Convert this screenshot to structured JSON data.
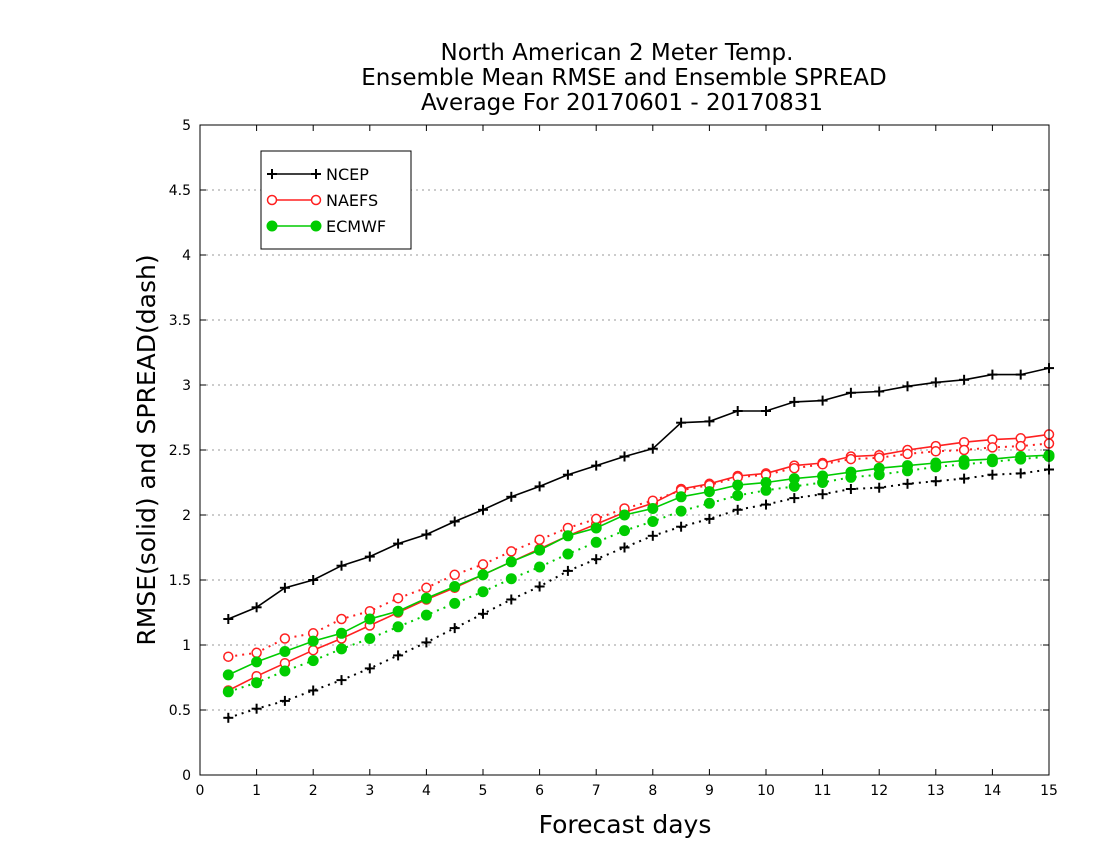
{
  "chart_data": {
    "type": "line",
    "title": [
      "North American 2 Meter Temp.",
      "Ensemble Mean RMSE and Ensemble SPREAD",
      "Average For 20170601 - 20170831"
    ],
    "xlabel": "Forecast days",
    "ylabel": "RMSE(solid) and SPREAD(dash)",
    "xlim": [
      0,
      15
    ],
    "ylim": [
      0,
      5
    ],
    "xticks": [
      "0",
      "1",
      "2",
      "3",
      "4",
      "5",
      "6",
      "7",
      "8",
      "9",
      "10",
      "11",
      "12",
      "13",
      "14",
      "15"
    ],
    "yticks": [
      "0",
      "0.5",
      "1",
      "1.5",
      "2",
      "2.5",
      "3",
      "3.5",
      "4",
      "4.5",
      "5"
    ],
    "grid": "horizontal-dotted",
    "legend_position": "top-left",
    "x": [
      0.5,
      1,
      1.5,
      2,
      2.5,
      3,
      3.5,
      4,
      4.5,
      5,
      5.5,
      6,
      6.5,
      7,
      7.5,
      8,
      8.5,
      9,
      9.5,
      10,
      10.5,
      11,
      11.5,
      12,
      12.5,
      13,
      13.5,
      14,
      14.5,
      15
    ],
    "series": [
      {
        "name": "NCEP",
        "color": "#000000",
        "marker": "plus",
        "rmse": [
          1.2,
          1.29,
          1.44,
          1.5,
          1.61,
          1.68,
          1.78,
          1.85,
          1.95,
          2.04,
          2.14,
          2.22,
          2.31,
          2.38,
          2.45,
          2.51,
          2.71,
          2.72,
          2.8,
          2.8,
          2.87,
          2.88,
          2.94,
          2.95,
          2.99,
          3.02,
          3.04,
          3.08,
          3.08,
          3.13
        ],
        "spread": [
          0.44,
          0.51,
          0.57,
          0.65,
          0.73,
          0.82,
          0.92,
          1.02,
          1.13,
          1.24,
          1.35,
          1.45,
          1.57,
          1.66,
          1.75,
          1.84,
          1.91,
          1.97,
          2.04,
          2.08,
          2.13,
          2.16,
          2.2,
          2.21,
          2.24,
          2.26,
          2.28,
          2.31,
          2.32,
          2.35
        ]
      },
      {
        "name": "NAEFS",
        "color": "#ff2020",
        "marker": "open-circle",
        "rmse": [
          0.65,
          0.76,
          0.86,
          0.96,
          1.05,
          1.15,
          1.25,
          1.35,
          1.44,
          1.54,
          1.64,
          1.74,
          1.84,
          1.93,
          2.02,
          2.09,
          2.2,
          2.24,
          2.3,
          2.32,
          2.38,
          2.4,
          2.45,
          2.46,
          2.5,
          2.53,
          2.56,
          2.58,
          2.59,
          2.62
        ],
        "spread": [
          0.91,
          0.94,
          1.05,
          1.09,
          1.2,
          1.26,
          1.36,
          1.44,
          1.54,
          1.62,
          1.72,
          1.81,
          1.9,
          1.97,
          2.05,
          2.11,
          2.19,
          2.23,
          2.29,
          2.31,
          2.36,
          2.39,
          2.43,
          2.44,
          2.47,
          2.49,
          2.5,
          2.52,
          2.53,
          2.55
        ]
      },
      {
        "name": "ECMWF",
        "color": "#00cc00",
        "marker": "filled-circle",
        "rmse": [
          0.77,
          0.87,
          0.95,
          1.03,
          1.09,
          1.2,
          1.26,
          1.36,
          1.45,
          1.54,
          1.64,
          1.73,
          1.84,
          1.9,
          2.0,
          2.05,
          2.14,
          2.18,
          2.23,
          2.25,
          2.28,
          2.3,
          2.33,
          2.36,
          2.38,
          2.4,
          2.42,
          2.43,
          2.45,
          2.46
        ],
        "spread": [
          0.64,
          0.71,
          0.8,
          0.88,
          0.97,
          1.05,
          1.14,
          1.23,
          1.32,
          1.41,
          1.51,
          1.6,
          1.7,
          1.79,
          1.88,
          1.95,
          2.03,
          2.09,
          2.15,
          2.19,
          2.22,
          2.25,
          2.29,
          2.31,
          2.34,
          2.37,
          2.39,
          2.41,
          2.43,
          2.45
        ]
      }
    ]
  }
}
